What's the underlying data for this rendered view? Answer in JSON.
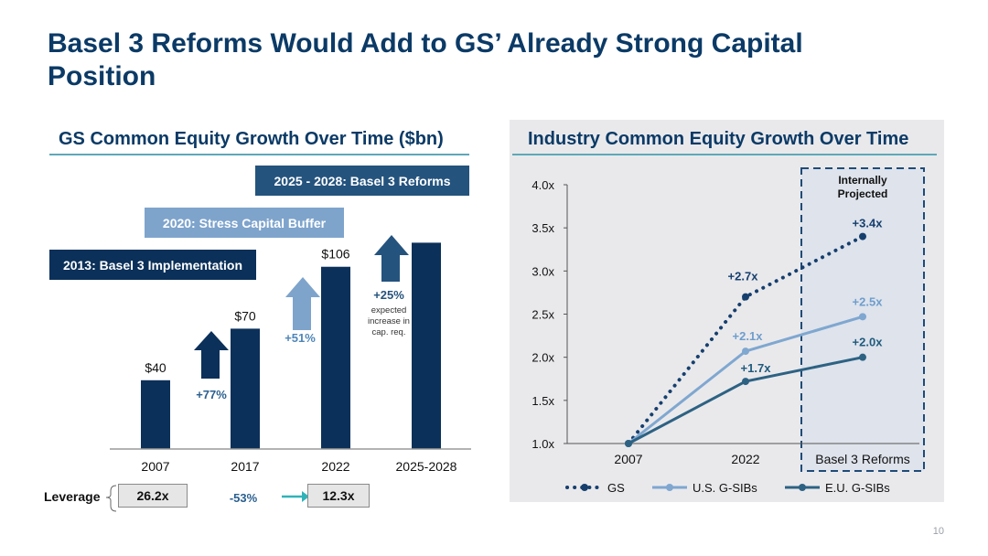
{
  "title": "Basel 3 Reforms Would Add to GS’ Already Strong Capital Position",
  "page_number": "10",
  "colors": {
    "navy": "#0b3059",
    "steel": "#24537e",
    "light_blue": "#7ea4cc",
    "gs_line": "#163f6e",
    "us_line": "#7fa7d0",
    "eu_line": "#2d6283",
    "teal": "#5ea8b8"
  },
  "left_panel": {
    "header": "GS Common Equity Growth Over Time ($bn)",
    "banners": {
      "b2025": "2025 - 2028: Basel 3 Reforms",
      "b2020": "2020: Stress Capital Buffer",
      "b2013": "2013: Basel 3 Implementation"
    },
    "arrow_labels": {
      "a77": "+77%",
      "a51": "+51%",
      "a25": "+25%",
      "a25_note": [
        "expected",
        "increase in",
        "cap. req."
      ]
    },
    "leverage": {
      "label": "Leverage",
      "start": "26.2x",
      "change": "-53%",
      "end": "12.3x"
    }
  },
  "chart_data": [
    {
      "type": "bar",
      "title": "GS Common Equity Growth Over Time ($bn)",
      "categories": [
        "2007",
        "2017",
        "2022",
        "2025-2028"
      ],
      "values": [
        40,
        70,
        106,
        120
      ],
      "data_labels": [
        "$40",
        "$70",
        "$106",
        ""
      ],
      "ylim": [
        0,
        125
      ],
      "grid": false
    },
    {
      "type": "line",
      "title": "Industry Common Equity Growth Over Time",
      "x": [
        "2007",
        "2022",
        "Basel 3 Reforms"
      ],
      "yticks": [
        "1.0x",
        "1.5x",
        "2.0x",
        "2.5x",
        "3.0x",
        "3.5x",
        "4.0x"
      ],
      "ylim": [
        1.0,
        4.0
      ],
      "projection_box_label": [
        "Internally",
        "Projected"
      ],
      "series": [
        {
          "name": "GS",
          "values": [
            1.0,
            2.7,
            3.4
          ],
          "labels": [
            "",
            "+2.7x",
            "+3.4x"
          ],
          "style": "dotted"
        },
        {
          "name": "U.S. G-SIBs",
          "values": [
            1.0,
            2.07,
            2.47
          ],
          "labels": [
            "",
            "+2.1x",
            "+2.5x"
          ],
          "style": "solid"
        },
        {
          "name": "E.U. G-SIBs",
          "values": [
            1.0,
            1.72,
            2.0
          ],
          "labels": [
            "",
            "+1.7x",
            "+2.0x"
          ],
          "style": "solid"
        }
      ],
      "legend": "bottom",
      "grid": false
    }
  ]
}
